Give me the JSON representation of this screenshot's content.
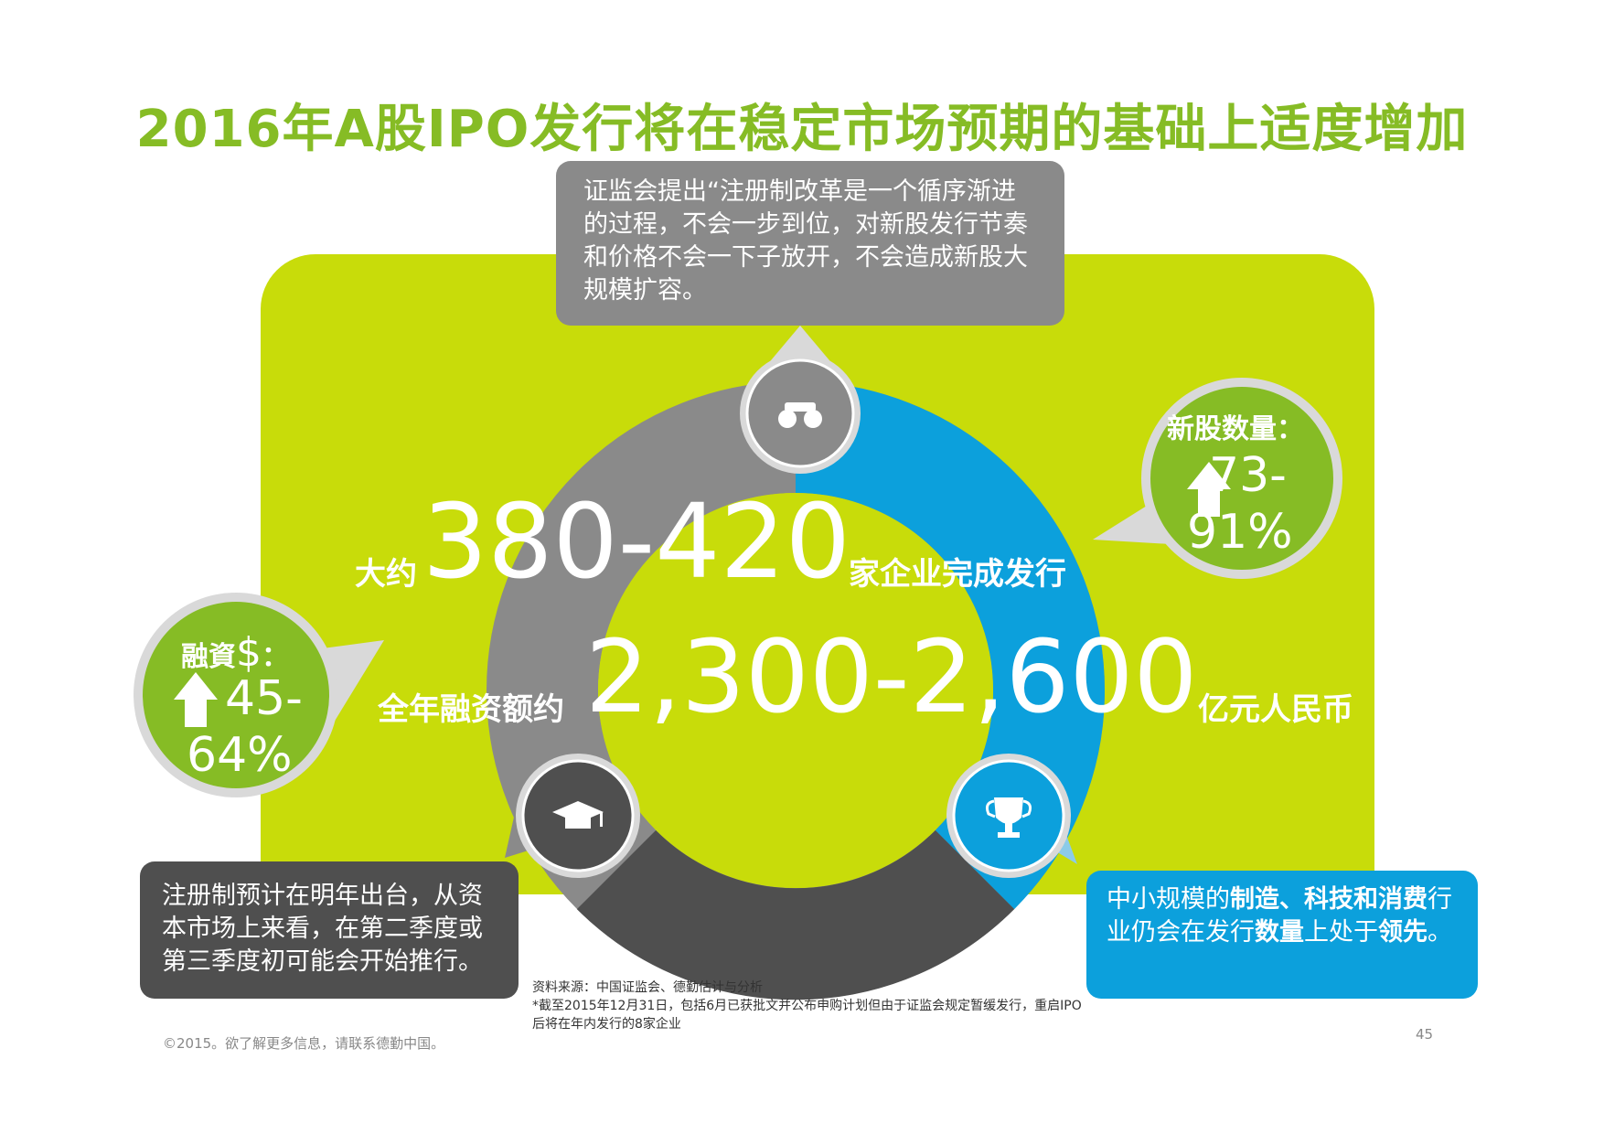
{
  "title": "2016年A股IPO发行将在稳定市场预期的基础上适度增加",
  "callouts": {
    "top": "证监会提出“注册制改革是一个循序渐进的过程，不会一步到位，对新股发行节奏和价格不会一下子放开，不会造成新股大规模扩容。",
    "bottom_left": "注册制预计在明年出台，从资本市场上来看，在第二季度或第三季度初可能会开始推行。",
    "bottom_right": {
      "part1": "中小规模的",
      "bold1": "制造、科技和消费",
      "part2": "行业仍会在发行",
      "bold2": "数量",
      "part3": "上处于",
      "bold3": "领先",
      "part4": "。"
    }
  },
  "center": {
    "prefix1": "大约",
    "range1": "380-420",
    "suffix1": "家企业完成发行",
    "prefix2": "全年融资额约",
    "range2": "2,300-2,600",
    "suffix2": "亿元人民币"
  },
  "bubbles": {
    "right": {
      "label": "新股数量：",
      "value_line1": "73-",
      "value_line2": "91%",
      "arrow": "up-arrow-icon"
    },
    "left": {
      "label_text": "融資",
      "label_symbol": "$",
      "label_colon": "：",
      "value_line1": "45-",
      "value_line2": "64%",
      "arrow": "up-arrow-icon"
    }
  },
  "icons": {
    "top": "binoculars-icon",
    "bottom_left": "graduation-cap-icon",
    "bottom_right": "trophy-icon"
  },
  "source": {
    "line1": "资料来源：中国证监会、德勤估计与分析",
    "line2": "*截至2015年12月31日，包括6月已获批文并公布申购计划但由于证监会规定暂缓发行，重启IPO后将在年内发行的8家企业"
  },
  "footer": {
    "copyright": "©2015。欲了解更多信息，请联系德勤中国。",
    "page": "45"
  },
  "colors": {
    "green": "#86bc25",
    "lime": "#c8dc0a",
    "blue": "#0ca0dc",
    "gray": "#8a8a8a",
    "dark": "#4f4f4f"
  }
}
